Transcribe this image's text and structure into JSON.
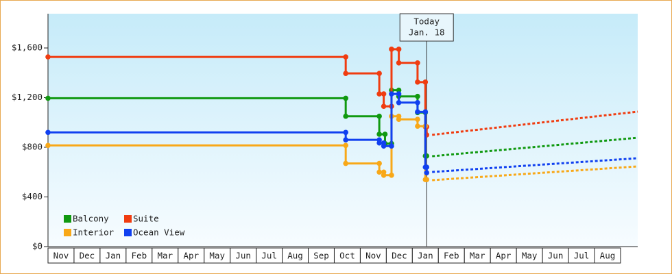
{
  "chart_data": {
    "type": "line",
    "xlim": [
      0,
      22.66
    ],
    "ylim": [
      0,
      1876
    ],
    "xticks": [
      {
        "value": 0.5,
        "label": "Nov"
      },
      {
        "value": 1.5,
        "label": "Dec"
      },
      {
        "value": 2.5,
        "label": "Jan"
      },
      {
        "value": 3.5,
        "label": "Feb"
      },
      {
        "value": 4.5,
        "label": "Mar"
      },
      {
        "value": 5.5,
        "label": "Apr"
      },
      {
        "value": 6.5,
        "label": "May"
      },
      {
        "value": 7.5,
        "label": "Jun"
      },
      {
        "value": 8.5,
        "label": "Jul"
      },
      {
        "value": 9.5,
        "label": "Aug"
      },
      {
        "value": 10.5,
        "label": "Sep"
      },
      {
        "value": 11.5,
        "label": "Oct"
      },
      {
        "value": 12.5,
        "label": "Nov"
      },
      {
        "value": 13.5,
        "label": "Dec"
      },
      {
        "value": 14.5,
        "label": "Jan"
      },
      {
        "value": 15.5,
        "label": "Feb"
      },
      {
        "value": 16.5,
        "label": "Mar"
      },
      {
        "value": 17.5,
        "label": "Apr"
      },
      {
        "value": 18.5,
        "label": "May"
      },
      {
        "value": 19.5,
        "label": "Jun"
      },
      {
        "value": 20.5,
        "label": "Jul"
      },
      {
        "value": 21.5,
        "label": "Aug"
      }
    ],
    "yticks": [
      {
        "value": 0,
        "label": "$0"
      },
      {
        "value": 400,
        "label": "$400"
      },
      {
        "value": 800,
        "label": "$800"
      },
      {
        "value": 1200,
        "label": "$1,200"
      },
      {
        "value": 1600,
        "label": "$1,600"
      }
    ],
    "annotation": {
      "x": 14.55,
      "lines": [
        "Today",
        "Jan. 18"
      ]
    },
    "series": [
      {
        "name": "Balcony",
        "color": "#109910",
        "x": [
          0,
          11.44,
          11.44,
          12.73,
          12.73,
          12.95,
          12.95,
          13.2,
          13.2,
          13.48,
          13.48,
          14.2,
          14.2,
          14.5,
          14.5,
          14.55
        ],
        "values": [
          1195,
          1195,
          1050,
          1050,
          905,
          905,
          830,
          830,
          1260,
          1260,
          1210,
          1210,
          1080,
          1080,
          730,
          730
        ],
        "forecast_x": [
          14.76,
          22.66
        ],
        "forecast_values": [
          728,
          877
        ]
      },
      {
        "name": "Suite",
        "color": "#f03c10",
        "x": [
          0,
          11.44,
          11.44,
          12.73,
          12.73,
          12.9,
          12.9,
          13.2,
          13.2,
          13.48,
          13.48,
          14.2,
          14.2,
          14.5,
          14.5,
          14.55,
          14.55
        ],
        "values": [
          1528,
          1528,
          1395,
          1395,
          1230,
          1230,
          1130,
          1130,
          1590,
          1590,
          1480,
          1480,
          1325,
          1325,
          965,
          965,
          900
        ],
        "forecast_x": [
          14.76,
          22.66
        ],
        "forecast_values": [
          900,
          1087
        ]
      },
      {
        "name": "Interior",
        "color": "#f8a818",
        "x": [
          0,
          11.44,
          11.44,
          12.73,
          12.73,
          12.9,
          12.9,
          13.2,
          13.2,
          13.48,
          13.48,
          14.2,
          14.2,
          14.5,
          14.5,
          14.55
        ],
        "values": [
          815,
          815,
          670,
          670,
          600,
          600,
          575,
          575,
          1050,
          1050,
          1025,
          1025,
          970,
          970,
          540,
          540
        ],
        "forecast_x": [
          14.76,
          22.66
        ],
        "forecast_values": [
          535,
          646
        ]
      },
      {
        "name": "Ocean View",
        "color": "#1040f0",
        "x": [
          0,
          11.44,
          11.44,
          12.73,
          12.73,
          12.9,
          12.9,
          13.2,
          13.2,
          13.48,
          13.48,
          14.2,
          14.2,
          14.5,
          14.5,
          14.55,
          14.55
        ],
        "values": [
          920,
          920,
          860,
          860,
          835,
          835,
          810,
          810,
          1230,
          1230,
          1160,
          1160,
          1085,
          1085,
          640,
          640,
          595
        ],
        "forecast_x": [
          14.76,
          22.66
        ],
        "forecast_values": [
          601,
          712
        ]
      }
    ]
  }
}
